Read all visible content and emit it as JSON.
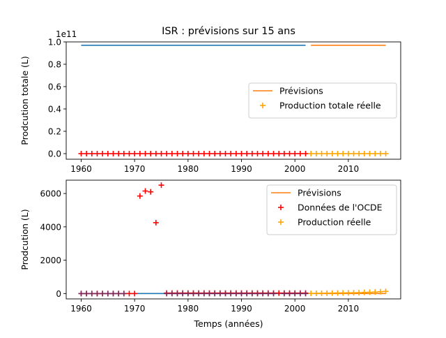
{
  "figure": {
    "title": "ISR : prévisions sur 15 ans",
    "xlabel": "Temps (années)"
  },
  "chart_data": [
    {
      "type": "line",
      "ylabel": "Prodcution totale (L)",
      "y_multiplier_label": "1e11",
      "xlim": [
        1957.2,
        2019.8
      ],
      "ylim": [
        -0.05,
        1.0
      ],
      "xticks": [
        1960,
        1970,
        1980,
        1990,
        2000,
        2010
      ],
      "yticks": [
        0.0,
        0.2,
        0.4,
        0.6,
        0.8,
        1.0
      ],
      "ytick_labels": [
        "0.0",
        "0.2",
        "0.4",
        "0.6",
        "0.8",
        "1.0"
      ],
      "legend_position": "center-right",
      "legend": [
        {
          "label": "Prévisions",
          "marker": "line",
          "color": "#ff7f0e"
        },
        {
          "label": "Production totale réelle",
          "marker": "plus",
          "color": "#ffa500"
        }
      ],
      "series": [
        {
          "kind": "line",
          "color": "#1f77b4",
          "x": [
            1960,
            2002
          ],
          "y": [
            0.97,
            0.97
          ]
        },
        {
          "kind": "line",
          "color": "#ff7f0e",
          "x": [
            2003,
            2017
          ],
          "y": [
            0.97,
            0.97
          ]
        },
        {
          "kind": "plus",
          "color": "#ff0000",
          "x_range": [
            1960,
            2002
          ],
          "y": 0.0
        },
        {
          "kind": "plus",
          "color": "#ffa500",
          "x_range": [
            2003,
            2017
          ],
          "y": 0.0
        }
      ]
    },
    {
      "type": "line",
      "ylabel": "Prodcution (L)",
      "xlabel": "Temps (années)",
      "xlim": [
        1957.2,
        2019.8
      ],
      "ylim": [
        -320,
        6800
      ],
      "xticks": [
        1960,
        1970,
        1980,
        1990,
        2000,
        2010
      ],
      "yticks": [
        0,
        2000,
        4000,
        6000
      ],
      "ytick_labels": [
        "0",
        "2000",
        "4000",
        "6000"
      ],
      "legend_position": "upper-right",
      "legend": [
        {
          "label": "Prévisions",
          "marker": "line",
          "color": "#ff7f0e"
        },
        {
          "label": "Données de l'OCDE",
          "marker": "plus",
          "color": "#ff0000"
        },
        {
          "label": "Production réelle",
          "marker": "plus",
          "color": "#ffa500"
        }
      ],
      "series": [
        {
          "kind": "line",
          "color": "#1f77b4",
          "x": [
            1960,
            2002
          ],
          "y": [
            0,
            0
          ]
        },
        {
          "kind": "line",
          "color": "#ff7f0e",
          "x": [
            2003,
            2017
          ],
          "y": [
            0,
            0
          ]
        },
        {
          "kind": "plus",
          "color": "#ff0000",
          "x": [
            1960,
            1961,
            1962,
            1963,
            1964,
            1965,
            1966,
            1967,
            1968,
            1969,
            1970,
            1971,
            1972,
            1973,
            1974,
            1975,
            1976,
            1977,
            1978,
            1979,
            1980,
            1981,
            1982,
            1983,
            1984,
            1985,
            1986,
            1987,
            1988,
            1989,
            1990,
            1991,
            1992,
            1993,
            1994,
            1995,
            1996,
            1997,
            1998,
            1999,
            2000,
            2001,
            2002
          ],
          "y": [
            0,
            0,
            0,
            0,
            0,
            0,
            0,
            0,
            0,
            0,
            0,
            5850,
            6150,
            6100,
            4250,
            6500,
            30,
            30,
            30,
            30,
            30,
            30,
            30,
            30,
            30,
            30,
            30,
            30,
            30,
            30,
            30,
            30,
            30,
            30,
            30,
            30,
            30,
            30,
            30,
            30,
            30,
            30,
            30
          ]
        },
        {
          "kind": "plus",
          "color": "#ffa500",
          "x": [
            2003,
            2004,
            2005,
            2006,
            2007,
            2008,
            2009,
            2010,
            2011,
            2012,
            2013,
            2014,
            2015,
            2016,
            2017
          ],
          "y": [
            10,
            15,
            20,
            25,
            30,
            35,
            40,
            45,
            50,
            55,
            70,
            80,
            90,
            110,
            130
          ]
        }
      ],
      "overlay_markers": {
        "kind": "plus",
        "color": "#7b2b5a",
        "x": [
          1960,
          1961,
          1962,
          1963,
          1964,
          1965,
          1966,
          1967,
          1968,
          1976,
          1977,
          1978,
          1979,
          1980,
          1981,
          1982,
          1983,
          1984,
          1985,
          1986,
          1987,
          1988,
          1989,
          1990,
          1991,
          1992,
          1993,
          1994,
          1995,
          1996,
          1998,
          1999,
          2000,
          2001,
          2002
        ],
        "y": 0
      }
    }
  ]
}
